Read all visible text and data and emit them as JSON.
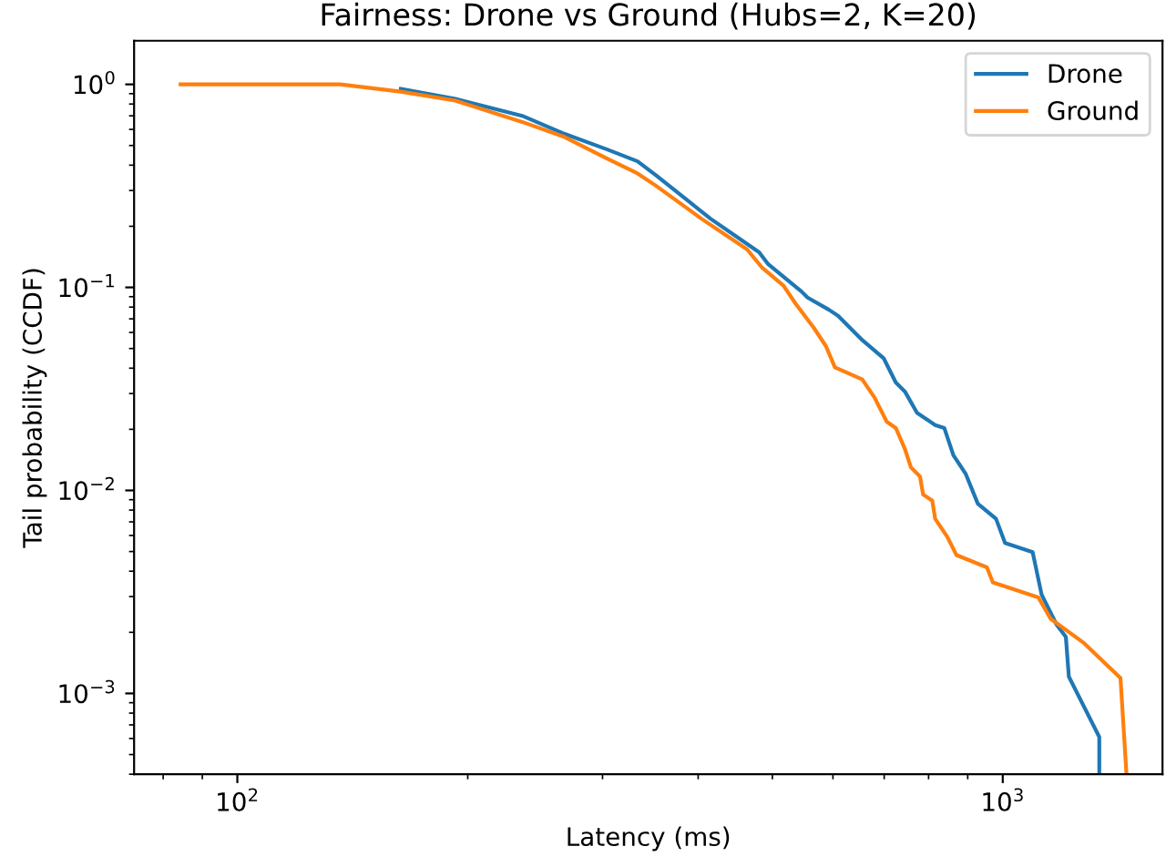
{
  "chart_data": {
    "type": "line",
    "title": "Fairness: Drone vs Ground (Hubs=2, K=20)",
    "xlabel": "Latency (ms)",
    "ylabel": "Tail probability (CCDF)",
    "log": "xy",
    "grid": false,
    "legend": "top right",
    "marker": "none",
    "line_style": "solid",
    "xlim": [
      73.3,
      1617
    ],
    "ylim": [
      0.0004,
      1.64
    ],
    "xticks": [
      {
        "value": 100,
        "label": "10$^{2}$"
      },
      {
        "value": 1000,
        "label": "10$^{3}$"
      }
    ],
    "yticks": [
      {
        "value": 0.001,
        "label": "10$^{−3}$"
      },
      {
        "value": 0.01,
        "label": "10$^{−2}$"
      },
      {
        "value": 0.1,
        "label": "10$^{−1}$"
      },
      {
        "value": 1,
        "label": "10$^{0}$"
      }
    ],
    "series": [
      {
        "name": "Drone",
        "color": "#1f77b4",
        "x": [
          163.5,
          192.7,
          235.6,
          267.7,
          303.7,
          333.3,
          352.2,
          415.1,
          480.5,
          493.9,
          545.9,
          555.9,
          592.8,
          609.3,
          655.3,
          698.8,
          724.9,
          745.0,
          772.6,
          816.0,
          838.7,
          862.0,
          894.2,
          927.8,
          979.9,
          1007,
          1094,
          1124,
          1176,
          1209,
          1220,
          1337,
          1337
        ],
        "values": [
          0.95,
          0.848,
          0.7,
          0.57,
          0.479,
          0.418,
          0.357,
          0.218,
          0.149,
          0.13,
          0.0954,
          0.0891,
          0.0776,
          0.0725,
          0.055,
          0.0448,
          0.034,
          0.0307,
          0.0241,
          0.021,
          0.0203,
          0.0149,
          0.0121,
          0.0086,
          0.00725,
          0.00551,
          0.00497,
          0.00307,
          0.00218,
          0.0019,
          0.00121,
          0.00061,
          0.0004
        ]
      },
      {
        "name": "Ground",
        "color": "#ff7f0e",
        "x": [
          84.3,
          136.2,
          163.5,
          192.7,
          235.6,
          267.7,
          303.7,
          333.3,
          352.2,
          403.9,
          463.3,
          484.9,
          517.0,
          536.3,
          566.5,
          587.4,
          603.6,
          655.3,
          679.8,
          705.3,
          724.9,
          745.0,
          758.6,
          779.7,
          787.0,
          808.9,
          816.0,
          846.5,
          870.0,
          953.5,
          970.7,
          1113,
          1155,
          1277,
          1425,
          1451
        ],
        "values": [
          1.0,
          1.0,
          0.921,
          0.831,
          0.653,
          0.55,
          0.432,
          0.364,
          0.317,
          0.218,
          0.154,
          0.125,
          0.102,
          0.0831,
          0.0632,
          0.0514,
          0.0404,
          0.0352,
          0.0287,
          0.0218,
          0.0203,
          0.016,
          0.013,
          0.0117,
          0.00954,
          0.00891,
          0.00725,
          0.0059,
          0.0048,
          0.00418,
          0.00352,
          0.00297,
          0.00233,
          0.00177,
          0.00119,
          0.0004
        ]
      }
    ]
  }
}
